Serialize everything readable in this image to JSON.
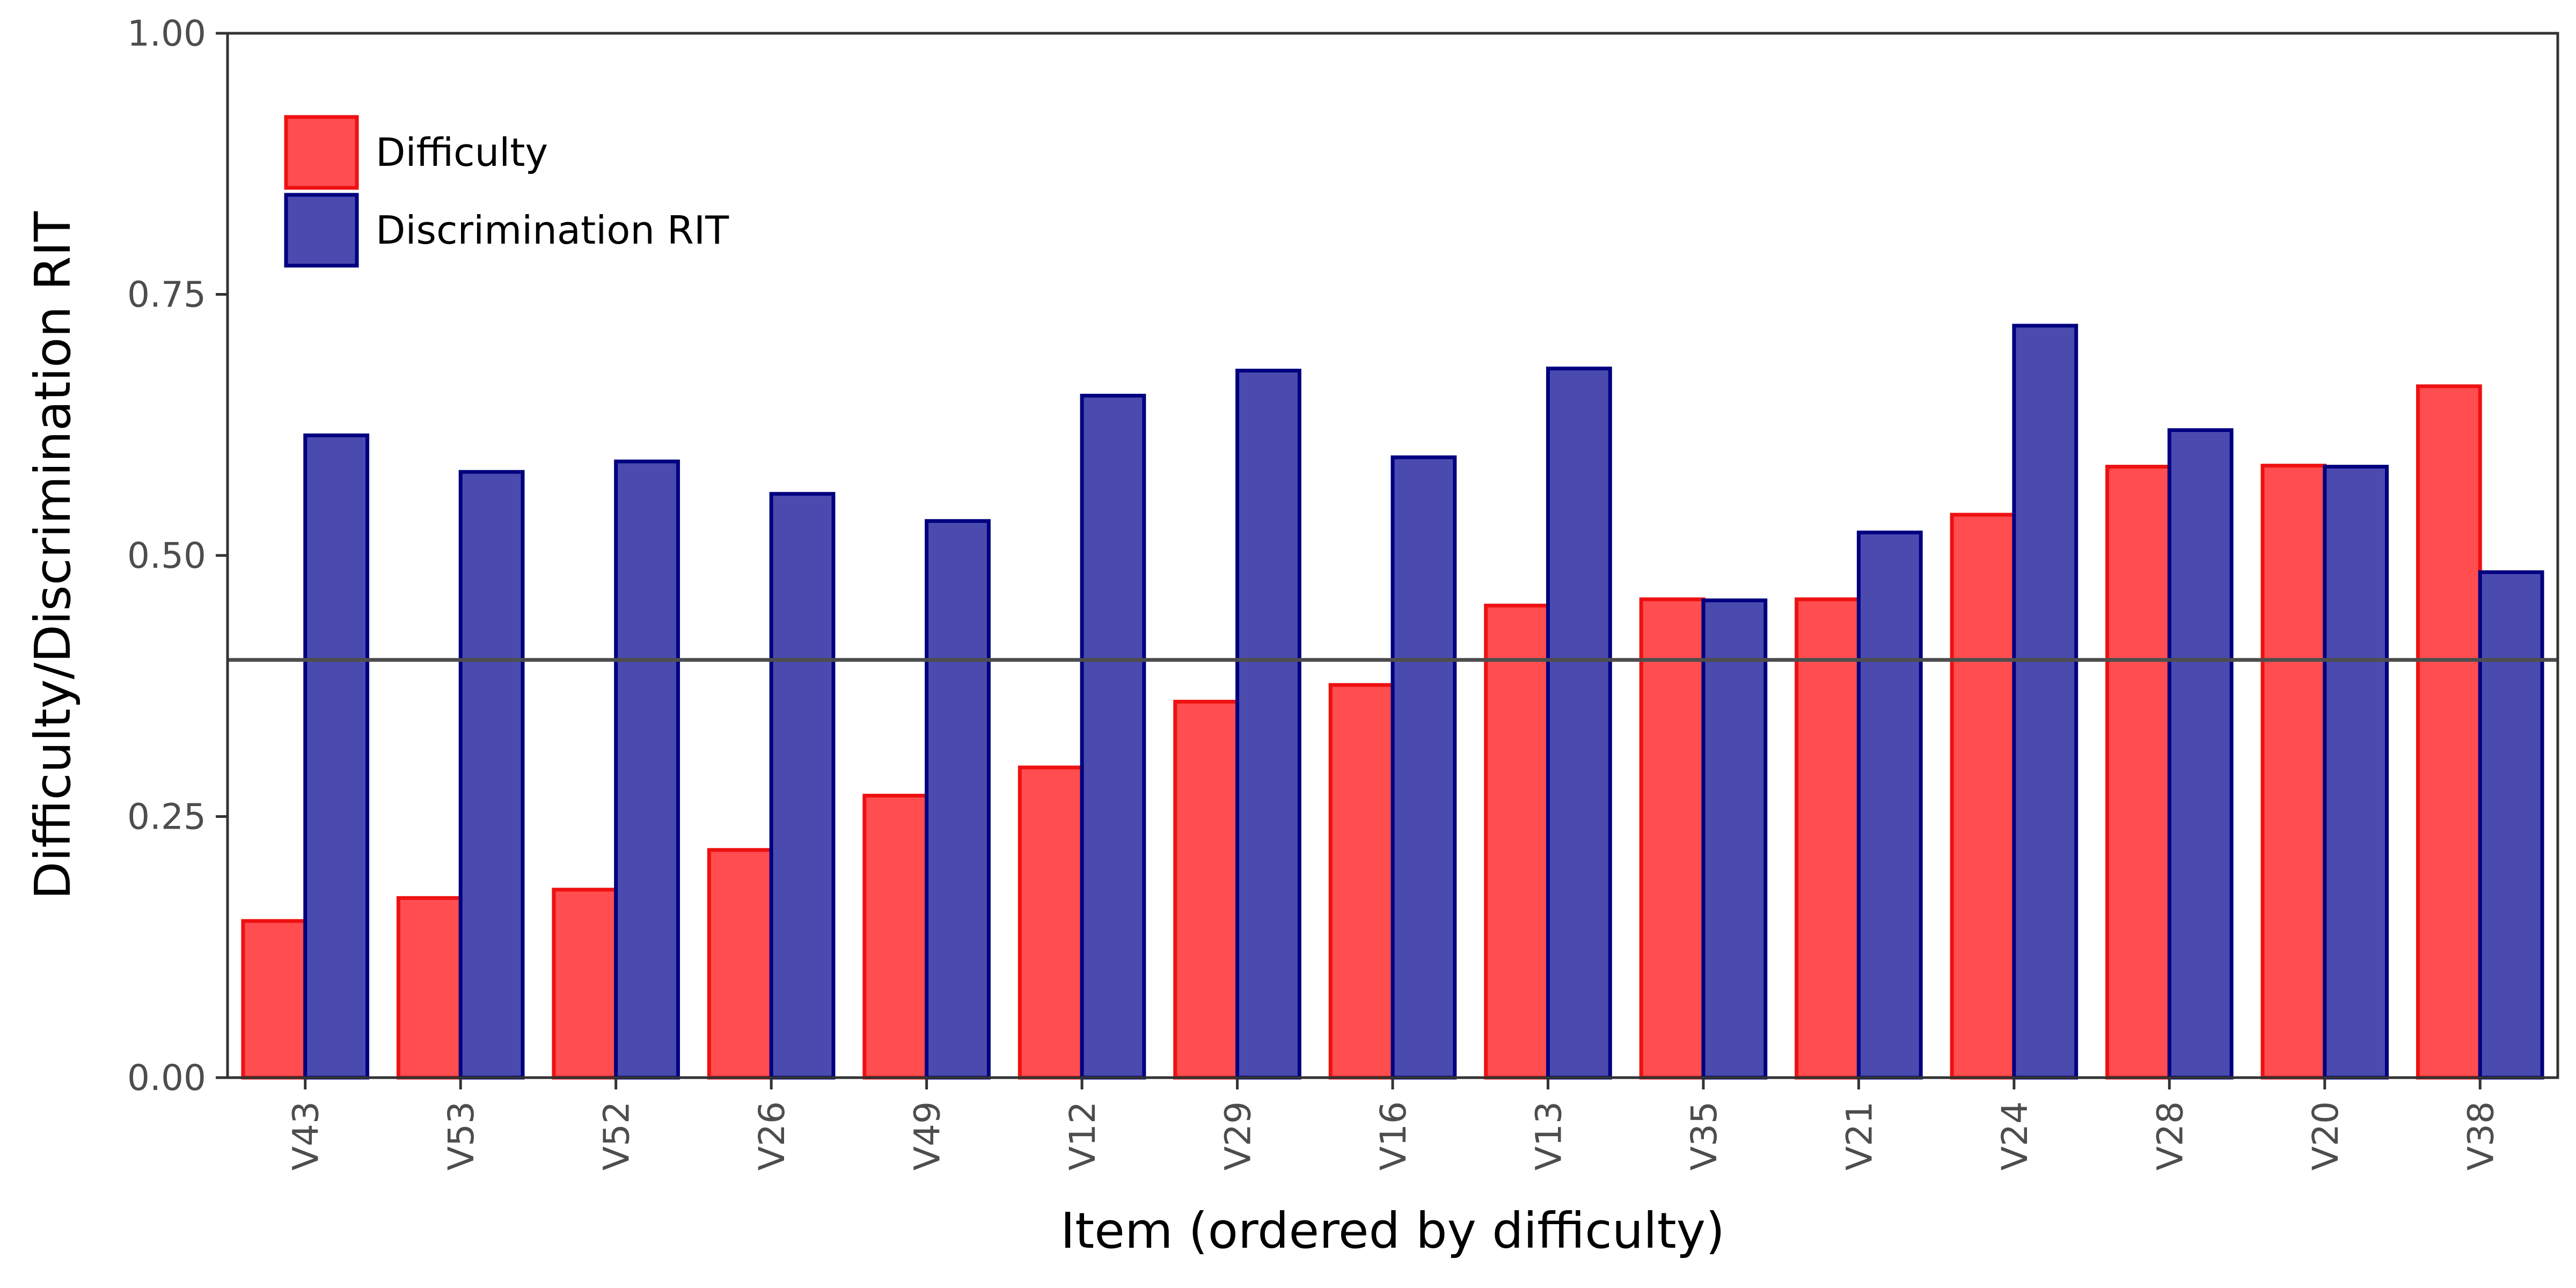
{
  "chart_data": {
    "type": "bar",
    "xlabel": "Item (ordered by difficulty)",
    "ylabel": "Difficulty/Discrimination RIT",
    "ylim": [
      0,
      1
    ],
    "yticks": [
      0,
      0.25,
      0.5,
      0.75,
      1
    ],
    "ytick_labels": [
      "0.00",
      "0.25",
      "0.50",
      "0.75",
      "1.00"
    ],
    "reference_line": 0.4,
    "grid": false,
    "legend_position": "top-left",
    "categories": [
      "V43",
      "V53",
      "V52",
      "V26",
      "V49",
      "V12",
      "V29",
      "V16",
      "V13",
      "V35",
      "V21",
      "V24",
      "V28",
      "V20",
      "V38"
    ],
    "series": [
      {
        "name": "Difficulty",
        "fill": "#ff4d50",
        "stroke": "#ee1111",
        "values": [
          0.15,
          0.172,
          0.18,
          0.218,
          0.27,
          0.297,
          0.36,
          0.376,
          0.452,
          0.458,
          0.458,
          0.539,
          0.585,
          0.586,
          0.662
        ]
      },
      {
        "name": "Discrimination RIT",
        "fill": "#4b4baf",
        "stroke": "#000080",
        "values": [
          0.615,
          0.58,
          0.59,
          0.559,
          0.533,
          0.653,
          0.677,
          0.594,
          0.679,
          0.457,
          0.522,
          0.72,
          0.62,
          0.585,
          0.484
        ]
      }
    ]
  }
}
